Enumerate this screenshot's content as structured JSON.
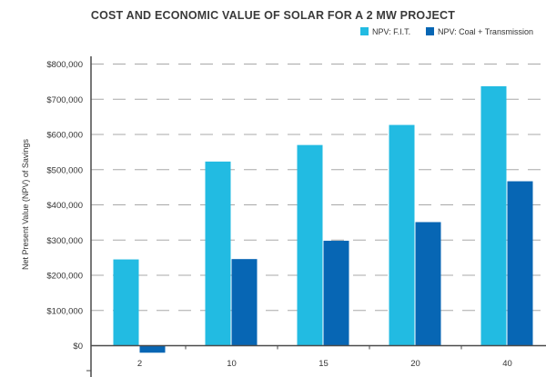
{
  "chart_data": {
    "type": "bar",
    "title": "COST AND ECONOMIC VALUE OF SOLAR FOR A 2 MW PROJECT",
    "xlabel": "",
    "ylabel": "Net Present Value (NPV) of Savings",
    "categories": [
      "2",
      "10",
      "15",
      "20",
      "40"
    ],
    "series": [
      {
        "name": "NPV: F.I.T.",
        "color": "#22bbe2",
        "values": [
          245000,
          523000,
          570000,
          627000,
          737000
        ]
      },
      {
        "name": "NPV: Coal + Transmission",
        "color": "#0766b4",
        "values": [
          -20000,
          246000,
          298000,
          351000,
          467000
        ]
      }
    ],
    "ylim": [
      -50000,
      800000
    ],
    "yticks": [
      0,
      100000,
      200000,
      300000,
      400000,
      500000,
      600000,
      700000,
      800000
    ],
    "ytick_labels": [
      "$0",
      "$100,000",
      "$200,000",
      "$300,000",
      "$400,000",
      "$500,000",
      "$600,000",
      "$700,000",
      "$800,000"
    ],
    "grid": true,
    "legend_position": "top-right"
  }
}
